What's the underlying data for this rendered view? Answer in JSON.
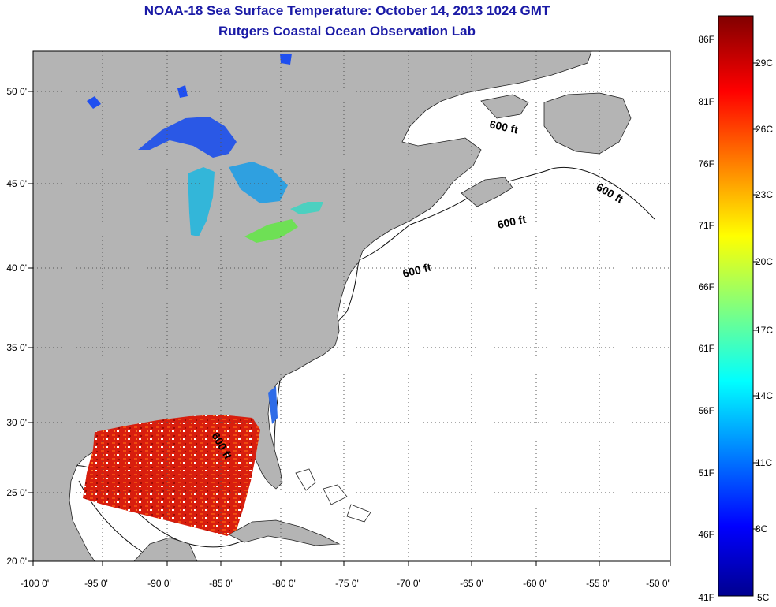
{
  "header": {
    "title_line1": "NOAA-18 Sea Surface Temperature:  October 14, 2013 1024 GMT",
    "title_line2": "Rutgers Coastal Ocean Observation Lab"
  },
  "map": {
    "lon_ticks": [
      "-100 0'",
      "-95 0'",
      "-90 0'",
      "-85 0'",
      "-80 0'",
      "-75 0'",
      "-70 0'",
      "-65 0'",
      "-60 0'",
      "-55 0'",
      "-50 0'"
    ],
    "lat_ticks": [
      "50 0'",
      "45 0'",
      "40 0'",
      "35 0'",
      "30 0'",
      "25 0'",
      "20 0'"
    ],
    "isobath_labels": [
      "600 ft",
      "600 ft",
      "600 ft",
      "600 ft",
      "600 ft"
    ],
    "colors": {
      "land": "#b4b4b4",
      "ocean": "#ffffff",
      "grid": "#555555"
    }
  },
  "colorbar": {
    "f_labels": [
      "86F",
      "81F",
      "76F",
      "71F",
      "66F",
      "61F",
      "56F",
      "51F",
      "46F",
      "41F"
    ],
    "c_labels": [
      "29C",
      "26C",
      "23C",
      "20C",
      "17C",
      "14C",
      "11C",
      "8C",
      "5C"
    ],
    "colors": [
      "#00008f",
      "#0000ff",
      "#00ffff",
      "#ffff00",
      "#ff0000",
      "#800000"
    ]
  }
}
